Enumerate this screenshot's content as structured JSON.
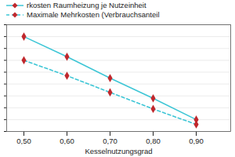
{
  "chart_data": {
    "type": "line",
    "x_label": "Kesselnutzungsgrad",
    "x": [
      0.5,
      0.6,
      0.7,
      0.8,
      0.9
    ],
    "series": [
      {
        "name": "rkosten Raumheizung je Nutzeinheit",
        "color": "#3ec6d6",
        "marker": "diamond",
        "line_style": "solid",
        "values": [
          8.0,
          6.3,
          4.5,
          2.8,
          1.0
        ]
      },
      {
        "name": "Maximale Mehrkosten (Verbrauchsanteil",
        "color": "#3ec6d6",
        "marker": "diamond",
        "line_style": "dashed",
        "values": [
          6.0,
          4.7,
          3.3,
          1.9,
          0.6
        ]
      }
    ],
    "xlim": [
      0.46,
      0.98
    ],
    "xticks": [
      {
        "value": 0.5,
        "label": "0,50"
      },
      {
        "value": 0.6,
        "label": "0,60"
      },
      {
        "value": 0.7,
        "label": "0,70"
      },
      {
        "value": 0.8,
        "label": "0,80"
      },
      {
        "value": 0.9,
        "label": "0,90"
      }
    ],
    "ylim": [
      0,
      9
    ],
    "yticks": [
      0,
      1,
      2,
      3,
      4,
      5,
      6,
      7,
      8,
      9
    ],
    "grid": "y",
    "tick_labels": "x"
  }
}
